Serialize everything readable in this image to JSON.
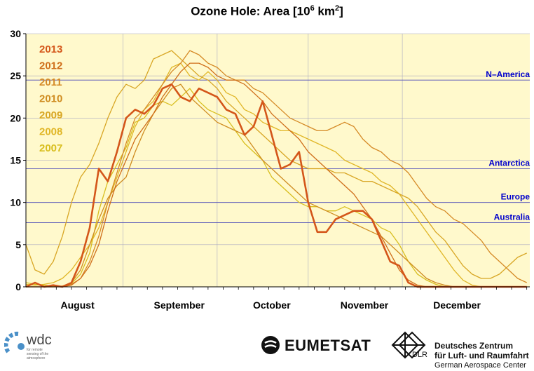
{
  "chart_data": {
    "type": "line",
    "title": "Ozone Hole: Area [10⁶ km²]",
    "title_parts": {
      "pre": "Ozone Hole: Area [10",
      "exp1": "6",
      "mid": " km",
      "exp2": "2",
      "post": "]"
    },
    "x_unit": "day of year",
    "xlim": [
      200,
      366
    ],
    "ylim": [
      0,
      30
    ],
    "yticks": [
      0,
      5,
      10,
      15,
      20,
      25,
      30
    ],
    "month_labels": [
      {
        "label": "August",
        "x": 217
      },
      {
        "label": "September",
        "x": 250.5
      },
      {
        "label": "October",
        "x": 281
      },
      {
        "label": "November",
        "x": 311.5
      },
      {
        "label": "December",
        "x": 342
      }
    ],
    "month_boundaries": [
      232,
      263,
      293,
      324
    ],
    "grid": true,
    "reference_lines": [
      {
        "label": "N–America",
        "value": 24.5
      },
      {
        "label": "Antarctica",
        "value": 14.0
      },
      {
        "label": "Europe",
        "value": 10.0
      },
      {
        "label": "Australia",
        "value": 7.6
      }
    ],
    "legend_placement": "top-left",
    "series": [
      {
        "name": "2007",
        "color": "#d8be1e",
        "width": 1.3,
        "x": [
          200,
          203,
          206,
          209,
          212,
          215,
          218,
          221,
          224,
          227,
          230,
          233,
          236,
          239,
          242,
          245,
          248,
          251,
          254,
          257,
          260,
          263,
          266,
          269,
          272,
          275,
          278,
          281,
          284,
          287,
          290,
          293,
          296,
          299,
          302,
          305,
          308,
          311,
          314,
          317,
          320,
          323,
          326,
          329,
          332,
          335,
          338,
          341,
          344,
          347,
          350,
          353,
          356,
          359,
          362,
          365
        ],
        "y": [
          0.5,
          0.3,
          0.2,
          0.1,
          0.0,
          0.4,
          1.5,
          4.0,
          9.0,
          12.5,
          14.5,
          16.5,
          19.5,
          20.0,
          21.5,
          22.0,
          21.5,
          22.5,
          23.5,
          22.0,
          21.0,
          20.5,
          20.0,
          18.5,
          17.0,
          16.0,
          15.0,
          13.0,
          12.0,
          11.0,
          10.0,
          9.5,
          9.5,
          9.0,
          9.0,
          9.5,
          9.0,
          8.5,
          8.0,
          7.0,
          6.5,
          5.0,
          3.0,
          1.5,
          0.8,
          0.3,
          0.0,
          0.0,
          0.0,
          0.0,
          0.0,
          0.0,
          0.0,
          0.0,
          0.0,
          0.0
        ]
      },
      {
        "name": "2008",
        "color": "#e0b626",
        "width": 1.3,
        "x": [
          200,
          203,
          206,
          209,
          212,
          215,
          218,
          221,
          224,
          227,
          230,
          233,
          236,
          239,
          242,
          245,
          248,
          251,
          254,
          257,
          260,
          263,
          266,
          269,
          272,
          275,
          278,
          281,
          284,
          287,
          290,
          293,
          296,
          299,
          302,
          305,
          308,
          311,
          314,
          317,
          320,
          323,
          326,
          329,
          332,
          335,
          338,
          341,
          344,
          347,
          350,
          353,
          356,
          359,
          362,
          365
        ],
        "y": [
          0.3,
          0.2,
          0.3,
          0.5,
          1.0,
          2.0,
          3.5,
          5.0,
          7.0,
          10.0,
          13.0,
          16.0,
          19.0,
          21.0,
          22.0,
          24.0,
          26.0,
          26.5,
          25.0,
          24.5,
          25.5,
          24.5,
          23.0,
          22.5,
          21.0,
          20.5,
          19.5,
          19.0,
          18.5,
          18.5,
          18.0,
          17.5,
          17.0,
          16.5,
          16.0,
          15.0,
          14.5,
          14.0,
          13.5,
          12.5,
          12.0,
          11.0,
          9.5,
          8.0,
          6.5,
          5.0,
          3.5,
          2.0,
          0.8,
          0.2,
          0.0,
          0.0,
          0.0,
          0.0,
          0.0,
          0.0
        ]
      },
      {
        "name": "2009",
        "color": "#d8a624",
        "width": 1.3,
        "x": [
          200,
          203,
          206,
          209,
          212,
          215,
          218,
          221,
          224,
          227,
          230,
          233,
          236,
          239,
          242,
          245,
          248,
          251,
          254,
          257,
          260,
          263,
          266,
          269,
          272,
          275,
          278,
          281,
          284,
          287,
          290,
          293,
          296,
          299,
          302,
          305,
          308,
          311,
          314,
          317,
          320,
          323,
          326,
          329,
          332,
          335,
          338,
          341,
          344,
          347,
          350,
          353,
          356,
          359,
          362,
          365
        ],
        "y": [
          5.0,
          2.0,
          1.5,
          3.0,
          6.0,
          10.0,
          13.0,
          14.5,
          17.0,
          20.0,
          22.5,
          24.0,
          23.5,
          24.5,
          27.0,
          27.5,
          28.0,
          27.0,
          26.0,
          25.0,
          24.5,
          23.5,
          22.0,
          21.0,
          20.0,
          19.0,
          18.0,
          17.0,
          16.0,
          15.0,
          14.5,
          14.0,
          14.0,
          14.0,
          13.5,
          13.5,
          13.0,
          12.5,
          12.5,
          12.0,
          11.5,
          11.0,
          10.5,
          9.5,
          8.0,
          6.5,
          5.5,
          4.0,
          2.5,
          1.5,
          1.0,
          1.0,
          1.5,
          2.5,
          3.5,
          4.0
        ]
      },
      {
        "name": "2010",
        "color": "#cf8c20",
        "width": 1.3,
        "x": [
          200,
          203,
          206,
          209,
          212,
          215,
          218,
          221,
          224,
          227,
          230,
          233,
          236,
          239,
          242,
          245,
          248,
          251,
          254,
          257,
          260,
          263,
          266,
          269,
          272,
          275,
          278,
          281,
          284,
          287,
          290,
          293,
          296,
          299,
          302,
          305,
          308,
          311,
          314,
          317,
          320,
          323,
          326,
          329,
          332,
          335,
          338,
          341,
          344,
          347,
          350,
          353,
          356,
          359,
          362,
          365
        ],
        "y": [
          0.0,
          0.0,
          0.0,
          0.0,
          0.1,
          0.5,
          2.0,
          5.0,
          8.0,
          10.5,
          12.0,
          13.0,
          16.0,
          18.5,
          20.5,
          22.0,
          23.5,
          24.0,
          22.5,
          21.5,
          20.5,
          19.5,
          19.0,
          18.5,
          18.0,
          16.5,
          15.0,
          14.0,
          13.0,
          12.0,
          11.0,
          10.0,
          9.5,
          9.0,
          8.5,
          8.0,
          7.5,
          7.0,
          6.5,
          6.0,
          5.0,
          4.0,
          3.0,
          2.0,
          1.0,
          0.5,
          0.2,
          0.0,
          0.0,
          0.0,
          0.0,
          0.0,
          0.0,
          0.0,
          0.0,
          0.0
        ]
      },
      {
        "name": "2011",
        "color": "#d58a26",
        "width": 1.3,
        "x": [
          200,
          203,
          206,
          209,
          212,
          215,
          218,
          221,
          224,
          227,
          230,
          233,
          236,
          239,
          242,
          245,
          248,
          251,
          254,
          257,
          260,
          263,
          266,
          269,
          272,
          275,
          278,
          281,
          284,
          287,
          290,
          293,
          296,
          299,
          302,
          305,
          308,
          311,
          314,
          317,
          320,
          323,
          326,
          329,
          332,
          335,
          338,
          341,
          344,
          347,
          350,
          353,
          356,
          359,
          362,
          365
        ],
        "y": [
          0.0,
          0.0,
          0.0,
          0.0,
          0.0,
          0.3,
          1.0,
          3.0,
          6.0,
          10.0,
          13.5,
          17.0,
          20.0,
          21.0,
          22.5,
          24.0,
          25.5,
          26.5,
          28.0,
          27.5,
          26.5,
          26.0,
          25.0,
          24.5,
          24.5,
          23.5,
          23.0,
          22.0,
          21.0,
          20.0,
          19.5,
          19.0,
          18.5,
          18.5,
          19.0,
          19.5,
          19.0,
          17.5,
          16.5,
          16.0,
          15.0,
          14.5,
          13.5,
          12.0,
          10.5,
          9.5,
          9.0,
          8.0,
          7.5,
          6.5,
          5.5,
          4.0,
          3.0,
          2.0,
          1.0,
          0.5
        ]
      },
      {
        "name": "2012",
        "color": "#cf6e1a",
        "width": 1.3,
        "x": [
          200,
          203,
          206,
          209,
          212,
          215,
          218,
          221,
          224,
          227,
          230,
          233,
          236,
          239,
          242,
          245,
          248,
          251,
          254,
          257,
          260,
          263,
          266,
          269,
          272,
          275,
          278,
          281,
          284,
          287,
          290,
          293,
          296,
          299,
          302,
          305,
          308,
          311,
          314,
          317,
          320,
          323,
          326,
          329,
          332,
          335,
          338,
          341,
          344,
          347,
          350,
          353,
          356,
          359,
          362,
          365
        ],
        "y": [
          0.0,
          0.0,
          0.0,
          0.0,
          0.0,
          0.2,
          1.0,
          2.5,
          5.0,
          9.0,
          12.5,
          15.0,
          17.5,
          19.0,
          20.5,
          22.5,
          24.0,
          25.5,
          26.5,
          26.5,
          26.0,
          25.0,
          24.5,
          24.5,
          24.0,
          23.0,
          22.0,
          20.5,
          19.5,
          18.5,
          17.5,
          16.0,
          15.0,
          14.0,
          13.0,
          12.0,
          11.0,
          9.5,
          8.0,
          6.0,
          4.0,
          2.0,
          0.8,
          0.2,
          0.0,
          0.0,
          0.0,
          0.0,
          0.0,
          0.0,
          0.0,
          0.0,
          0.0,
          0.0,
          0.0,
          0.0
        ]
      },
      {
        "name": "2013",
        "color": "#d4561a",
        "width": 2.6,
        "x": [
          200,
          203,
          206,
          209,
          212,
          215,
          218,
          221,
          224,
          227,
          230,
          233,
          236,
          239,
          242,
          245,
          248,
          251,
          254,
          257,
          260,
          263,
          266,
          269,
          272,
          275,
          278,
          281,
          284,
          287,
          290,
          293,
          296,
          299,
          302,
          305,
          308,
          311,
          314,
          317,
          320,
          323,
          326,
          329,
          332,
          335,
          338,
          341,
          344,
          347,
          350,
          353,
          356,
          359,
          362,
          365
        ],
        "y": [
          0.0,
          0.5,
          0.0,
          0.2,
          0.0,
          0.5,
          3.0,
          7.0,
          14.0,
          12.5,
          16.0,
          20.0,
          21.0,
          20.5,
          21.5,
          23.5,
          24.0,
          22.5,
          22.0,
          23.5,
          23.0,
          22.5,
          21.0,
          20.5,
          18.0,
          19.0,
          22.0,
          18.0,
          14.0,
          14.5,
          16.0,
          10.0,
          6.5,
          6.5,
          8.0,
          8.5,
          9.0,
          9.0,
          8.0,
          5.5,
          3.0,
          2.5,
          0.5,
          0.0,
          0.0,
          0.0,
          0.0,
          0.0,
          0.0,
          0.0,
          0.0,
          0.0,
          0.0,
          0.0,
          0.0,
          0.0
        ]
      }
    ]
  },
  "footer": {
    "wdc_name": "wdc",
    "wdc_sub": "for remote sensing of the atmosphere",
    "eumetsat_name": "EUMETSAT",
    "dlr_abbr": "DLR",
    "dlr_line1": "Deutsches Zentrum",
    "dlr_line2": "für Luft- und Raumfahrt",
    "dlr_line3": "German Aerospace Center"
  },
  "colors": {
    "plot_background": "#fff9cc",
    "grid": "#a8a8c0",
    "reference_line": "#4a4ab8",
    "reference_label": "#0000cc"
  }
}
